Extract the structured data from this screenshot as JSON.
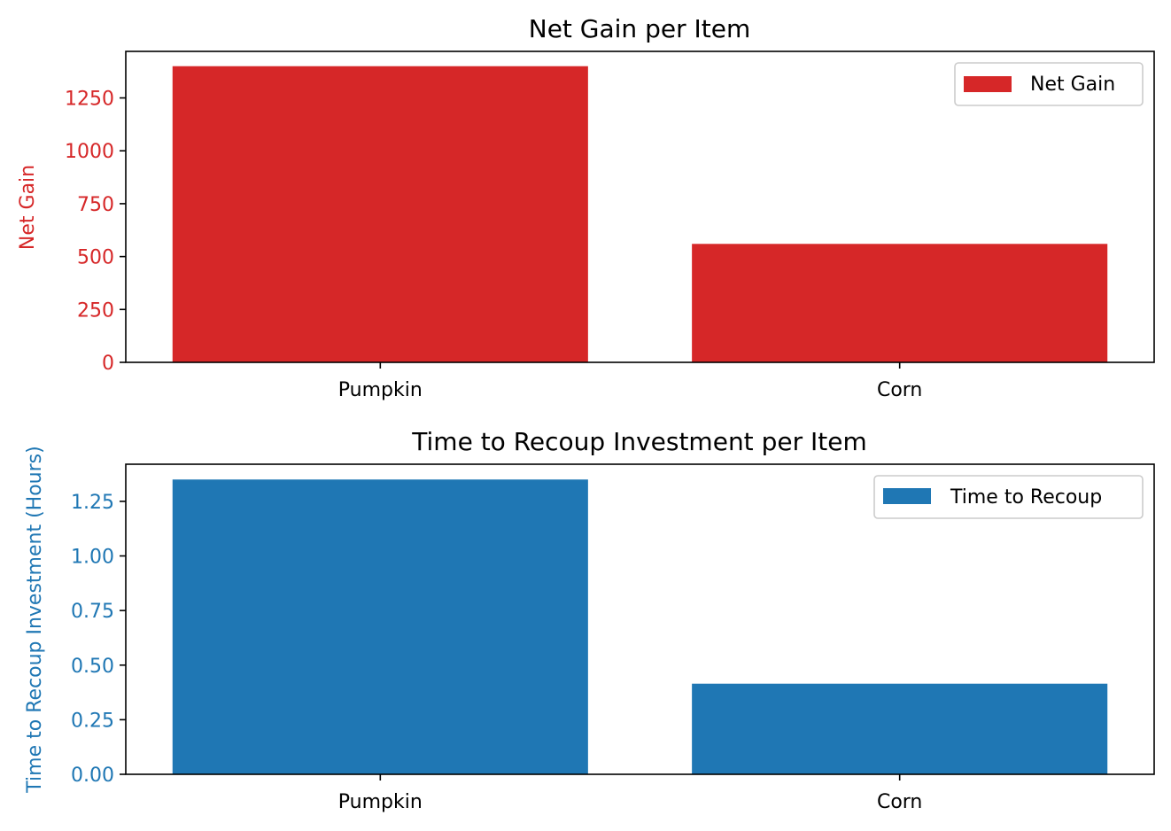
{
  "chart_data": [
    {
      "type": "bar",
      "title": "Net Gain per Item",
      "categories": [
        "Pumpkin",
        "Corn"
      ],
      "series": [
        {
          "name": "Net Gain",
          "values": [
            1400,
            560
          ],
          "color": "#d62728"
        }
      ],
      "ylabel": "Net Gain",
      "ylabel_color": "#d62728",
      "ylim": [
        0,
        1470
      ],
      "yticks": [
        0,
        250,
        500,
        750,
        1000,
        1250
      ],
      "yticklabels": [
        "0",
        "250",
        "500",
        "750",
        "1000",
        "1250"
      ],
      "grid": false,
      "legend_position": "top-right"
    },
    {
      "type": "bar",
      "title": "Time to Recoup Investment per Item",
      "categories": [
        "Pumpkin",
        "Corn"
      ],
      "series": [
        {
          "name": "Time to Recoup",
          "values": [
            1.35,
            0.415
          ],
          "color": "#1f77b4"
        }
      ],
      "ylabel": "Time to Recoup Investment (Hours)",
      "ylabel_color": "#1f77b4",
      "ylim": [
        0,
        1.42
      ],
      "yticks": [
        0,
        0.25,
        0.5,
        0.75,
        1.0,
        1.25
      ],
      "yticklabels": [
        "0.00",
        "0.25",
        "0.50",
        "0.75",
        "1.00",
        "1.25"
      ],
      "grid": false,
      "legend_position": "top-right"
    }
  ]
}
